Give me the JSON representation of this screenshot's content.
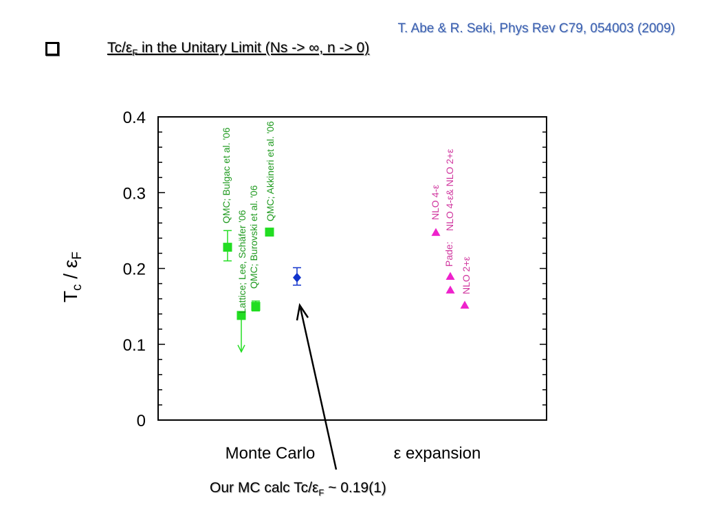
{
  "slide": {
    "citation": "T. Abe & R. Seki, Phys Rev C79, 054003 (2009)",
    "heading_main": "Tc/ε",
    "heading_sub": "F",
    "heading_rest": " in the Unitary Limit (Ns -> ∞, n -> 0)",
    "caption_main": "Our MC calc Tc/ε",
    "caption_sub": "F",
    "caption_rest": " ~ 0.19(1)"
  },
  "colors": {
    "green": "#22dd22",
    "green_text": "#1f9a1f",
    "magenta": "#ee22cc",
    "magenta_text": "#d0379f",
    "blue": "#1133cc",
    "citation": "#3a5fb0"
  },
  "chart_data": {
    "type": "scatter",
    "ylabel_main": "T",
    "ylabel_sub_c": "c",
    "ylabel_mid": " / ε",
    "ylabel_sub_f": "F",
    "ylim": [
      0,
      0.4
    ],
    "yticks": [
      "0",
      "0.1",
      "0.2",
      "0.3",
      "0.4"
    ],
    "categories": [
      "Monte Carlo",
      "ε expansion"
    ],
    "grid": false,
    "points": [
      {
        "label": "QMC; Bulgac et al. '06",
        "y": 0.228,
        "err_plus": 0.022,
        "err_minus": 0.018,
        "marker": "square",
        "color": "green"
      },
      {
        "label": "Lattice; Lee, Schäfer '06",
        "y": 0.138,
        "upper_limit": true,
        "marker": "square",
        "color": "green"
      },
      {
        "label": "QMC; Burovski et al. '06",
        "y": 0.15,
        "err_plus": 0.007,
        "err_minus": 0.006,
        "marker": "square",
        "color": "green"
      },
      {
        "label": "QMC; Akkineri et al. '06",
        "y": 0.248,
        "marker": "square",
        "color": "green"
      },
      {
        "label": "",
        "y": 0.188,
        "err_plus": 0.013,
        "err_minus": 0.01,
        "marker": "diamond",
        "color": "blue"
      },
      {
        "label": "NLO 4-ε",
        "y": 0.248,
        "marker": "triangle",
        "color": "magenta"
      },
      {
        "label": "NLO 4-ε&  NLO 2+ε",
        "y": 0.19,
        "marker": "triangle",
        "color": "magenta"
      },
      {
        "label": "Pade:",
        "y": 0.172,
        "marker": "triangle",
        "color": "magenta"
      },
      {
        "label": "NLO 2+ε",
        "y": 0.152,
        "marker": "triangle",
        "color": "magenta"
      }
    ]
  }
}
